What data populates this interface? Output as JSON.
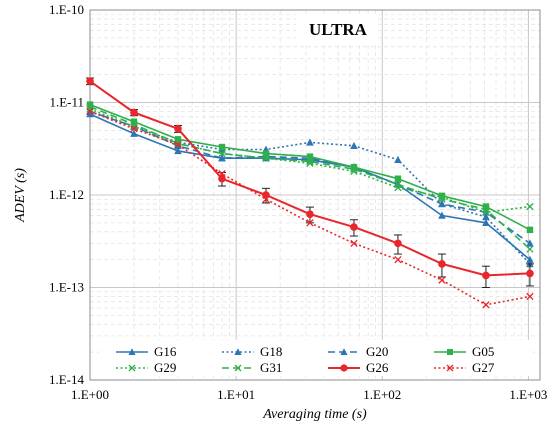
{
  "chart_data": {
    "type": "line",
    "title": "ULTRA",
    "xlabel": "Averaging time (s)",
    "ylabel": "ADEV (s)",
    "xscale": "log",
    "yscale": "log",
    "xlim": [
      1,
      1200
    ],
    "ylim": [
      1e-14,
      1e-10
    ],
    "x_ticks": [
      {
        "value": 1,
        "label": "1.E+00"
      },
      {
        "value": 10,
        "label": "1.E+01"
      },
      {
        "value": 100,
        "label": "1.E+02"
      },
      {
        "value": 1000,
        "label": "1.E+03"
      }
    ],
    "y_ticks": [
      {
        "value": 1e-14,
        "label": "1.E-14"
      },
      {
        "value": 1e-13,
        "label": "1.E-13"
      },
      {
        "value": 1e-12,
        "label": "1.E-12"
      },
      {
        "value": 1e-11,
        "label": "1.E-11"
      },
      {
        "value": 1e-10,
        "label": "1.E-10"
      }
    ],
    "grid": true,
    "legend": "bottom",
    "x": [
      1,
      2,
      4,
      8,
      16,
      32,
      64,
      128,
      256,
      512,
      1024
    ],
    "series": [
      {
        "name": "G16",
        "color": "#2e75b6",
        "dash": "solid",
        "marker": "triangle",
        "values": [
          7.5e-12,
          4.6e-12,
          3e-12,
          2.5e-12,
          2.5e-12,
          2.4e-12,
          2e-12,
          1.3e-12,
          6e-13,
          5e-13,
          2e-13
        ]
      },
      {
        "name": "G18",
        "color": "#2e75b6",
        "dash": "dotted",
        "marker": "triangle",
        "values": [
          8e-12,
          5.5e-12,
          3.7e-12,
          3.1e-12,
          3.1e-12,
          3.7e-12,
          3.4e-12,
          2.4e-12,
          8e-13,
          5.8e-13,
          1.8e-13
        ]
      },
      {
        "name": "G20",
        "color": "#2e75b6",
        "dash": "dashed",
        "marker": "triangle",
        "values": [
          8e-12,
          5.5e-12,
          3.4e-12,
          2.5e-12,
          2.6e-12,
          2.5e-12,
          2e-12,
          1.3e-12,
          8e-13,
          6.5e-13,
          3e-13
        ]
      },
      {
        "name": "G05",
        "color": "#2fb04a",
        "dash": "solid",
        "marker": "square",
        "values": [
          9.5e-12,
          6.2e-12,
          4e-12,
          3.3e-12,
          2.8e-12,
          2.6e-12,
          2e-12,
          1.5e-12,
          9.8e-13,
          7.5e-13,
          4.2e-13
        ]
      },
      {
        "name": "G29",
        "color": "#2fb04a",
        "dash": "dotted",
        "marker": "cross",
        "values": [
          8.5e-12,
          5.5e-12,
          3.6e-12,
          2.8e-12,
          2.5e-12,
          2.2e-12,
          1.8e-12,
          1.2e-12,
          9.5e-13,
          6.5e-13,
          7.5e-13
        ]
      },
      {
        "name": "G31",
        "color": "#2fb04a",
        "dash": "dashed",
        "marker": "cross",
        "values": [
          9e-12,
          5.8e-12,
          3.6e-12,
          2.8e-12,
          2.5e-12,
          2.3e-12,
          1.9e-12,
          1.3e-12,
          9e-13,
          7e-13,
          2.6e-13
        ]
      },
      {
        "name": "G26",
        "color": "#e8262b",
        "dash": "solid",
        "marker": "circle",
        "values": [
          1.7e-11,
          7.8e-12,
          5.2e-12,
          1.5e-12,
          1e-12,
          6.2e-13,
          4.5e-13,
          3e-13,
          1.8e-13,
          1.35e-13,
          1.42e-13
        ],
        "error": [
          1.4e-12,
          6e-13,
          4.5e-13,
          2.5e-13,
          1.8e-13,
          1.2e-13,
          9e-14,
          7e-14,
          5e-14,
          3.5e-14,
          3.8e-14
        ]
      },
      {
        "name": "G27",
        "color": "#e8262b",
        "dash": "dotted",
        "marker": "cross",
        "values": [
          8e-12,
          5.2e-12,
          3.5e-12,
          1.7e-12,
          9e-13,
          5e-13,
          3e-13,
          2e-13,
          1.2e-13,
          6.5e-14,
          8e-14
        ]
      }
    ]
  }
}
